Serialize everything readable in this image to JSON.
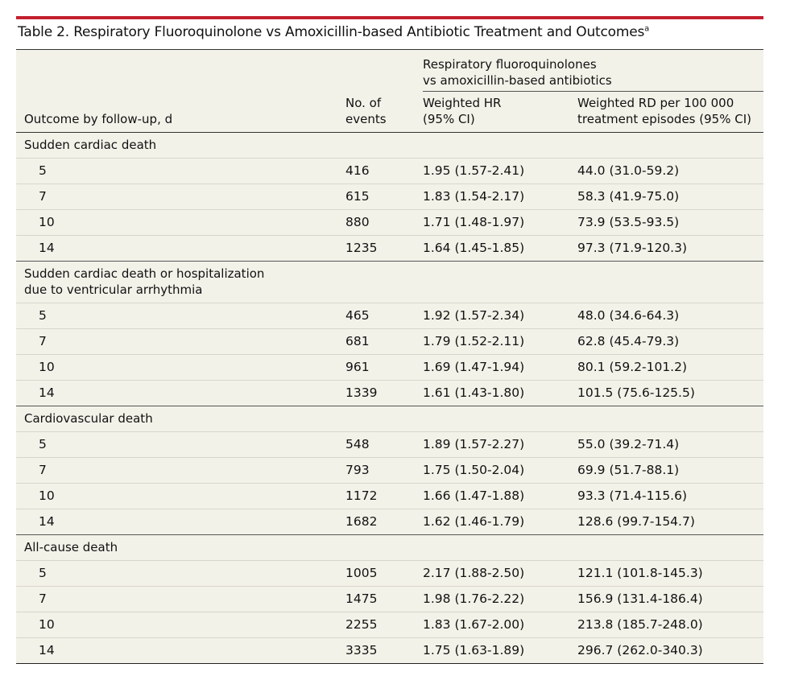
{
  "title": "Table 2. Respiratory Fluoroquinolone vs Amoxicillin-based Antibiotic Treatment and Outcomes",
  "title_footnote": "a",
  "accent_color": "#c4202f",
  "table_background": "#f3f2e9",
  "header": {
    "group_line1": "Respiratory fluoroquinolones",
    "group_line2": "vs amoxicillin-based antibiotics",
    "col_outcome": "Outcome by follow-up, d",
    "col_events_line1": "No. of",
    "col_events_line2": "events",
    "col_hr_line1": "Weighted HR",
    "col_hr_line2": "(95% CI)",
    "col_rd_line1": "Weighted RD per 100 000",
    "col_rd_line2": "treatment episodes (95% CI)"
  },
  "sections": [
    {
      "title_line1": "Sudden cardiac death",
      "title_line2": "",
      "rows": [
        {
          "followup": "5",
          "events": "416",
          "hr": "1.95 (1.57-2.41)",
          "rd": "44.0 (31.0-59.2)"
        },
        {
          "followup": "7",
          "events": "615",
          "hr": "1.83 (1.54-2.17)",
          "rd": "58.3 (41.9-75.0)"
        },
        {
          "followup": "10",
          "events": "880",
          "hr": "1.71 (1.48-1.97)",
          "rd": "73.9 (53.5-93.5)"
        },
        {
          "followup": "14",
          "events": "1235",
          "hr": "1.64 (1.45-1.85)",
          "rd": "97.3 (71.9-120.3)"
        }
      ]
    },
    {
      "title_line1": "Sudden cardiac death or hospitalization",
      "title_line2": "due to ventricular arrhythmia",
      "rows": [
        {
          "followup": "5",
          "events": "465",
          "hr": "1.92 (1.57-2.34)",
          "rd": "48.0 (34.6-64.3)"
        },
        {
          "followup": "7",
          "events": "681",
          "hr": "1.79 (1.52-2.11)",
          "rd": "62.8 (45.4-79.3)"
        },
        {
          "followup": "10",
          "events": "961",
          "hr": "1.69 (1.47-1.94)",
          "rd": "80.1 (59.2-101.2)"
        },
        {
          "followup": "14",
          "events": "1339",
          "hr": "1.61 (1.43-1.80)",
          "rd": "101.5 (75.6-125.5)"
        }
      ]
    },
    {
      "title_line1": "Cardiovascular death",
      "title_line2": "",
      "rows": [
        {
          "followup": "5",
          "events": "548",
          "hr": "1.89 (1.57-2.27)",
          "rd": "55.0 (39.2-71.4)"
        },
        {
          "followup": "7",
          "events": "793",
          "hr": "1.75 (1.50-2.04)",
          "rd": "69.9 (51.7-88.1)"
        },
        {
          "followup": "10",
          "events": "1172",
          "hr": "1.66 (1.47-1.88)",
          "rd": "93.3 (71.4-115.6)"
        },
        {
          "followup": "14",
          "events": "1682",
          "hr": "1.62 (1.46-1.79)",
          "rd": "128.6 (99.7-154.7)"
        }
      ]
    },
    {
      "title_line1": "All-cause death",
      "title_line2": "",
      "rows": [
        {
          "followup": "5",
          "events": "1005",
          "hr": "2.17 (1.88-2.50)",
          "rd": "121.1 (101.8-145.3)"
        },
        {
          "followup": "7",
          "events": "1475",
          "hr": "1.98 (1.76-2.22)",
          "rd": "156.9 (131.4-186.4)"
        },
        {
          "followup": "10",
          "events": "2255",
          "hr": "1.83 (1.67-2.00)",
          "rd": "213.8 (185.7-248.0)"
        },
        {
          "followup": "14",
          "events": "3335",
          "hr": "1.75 (1.63-1.89)",
          "rd": "296.7 (262.0-340.3)"
        }
      ]
    }
  ]
}
